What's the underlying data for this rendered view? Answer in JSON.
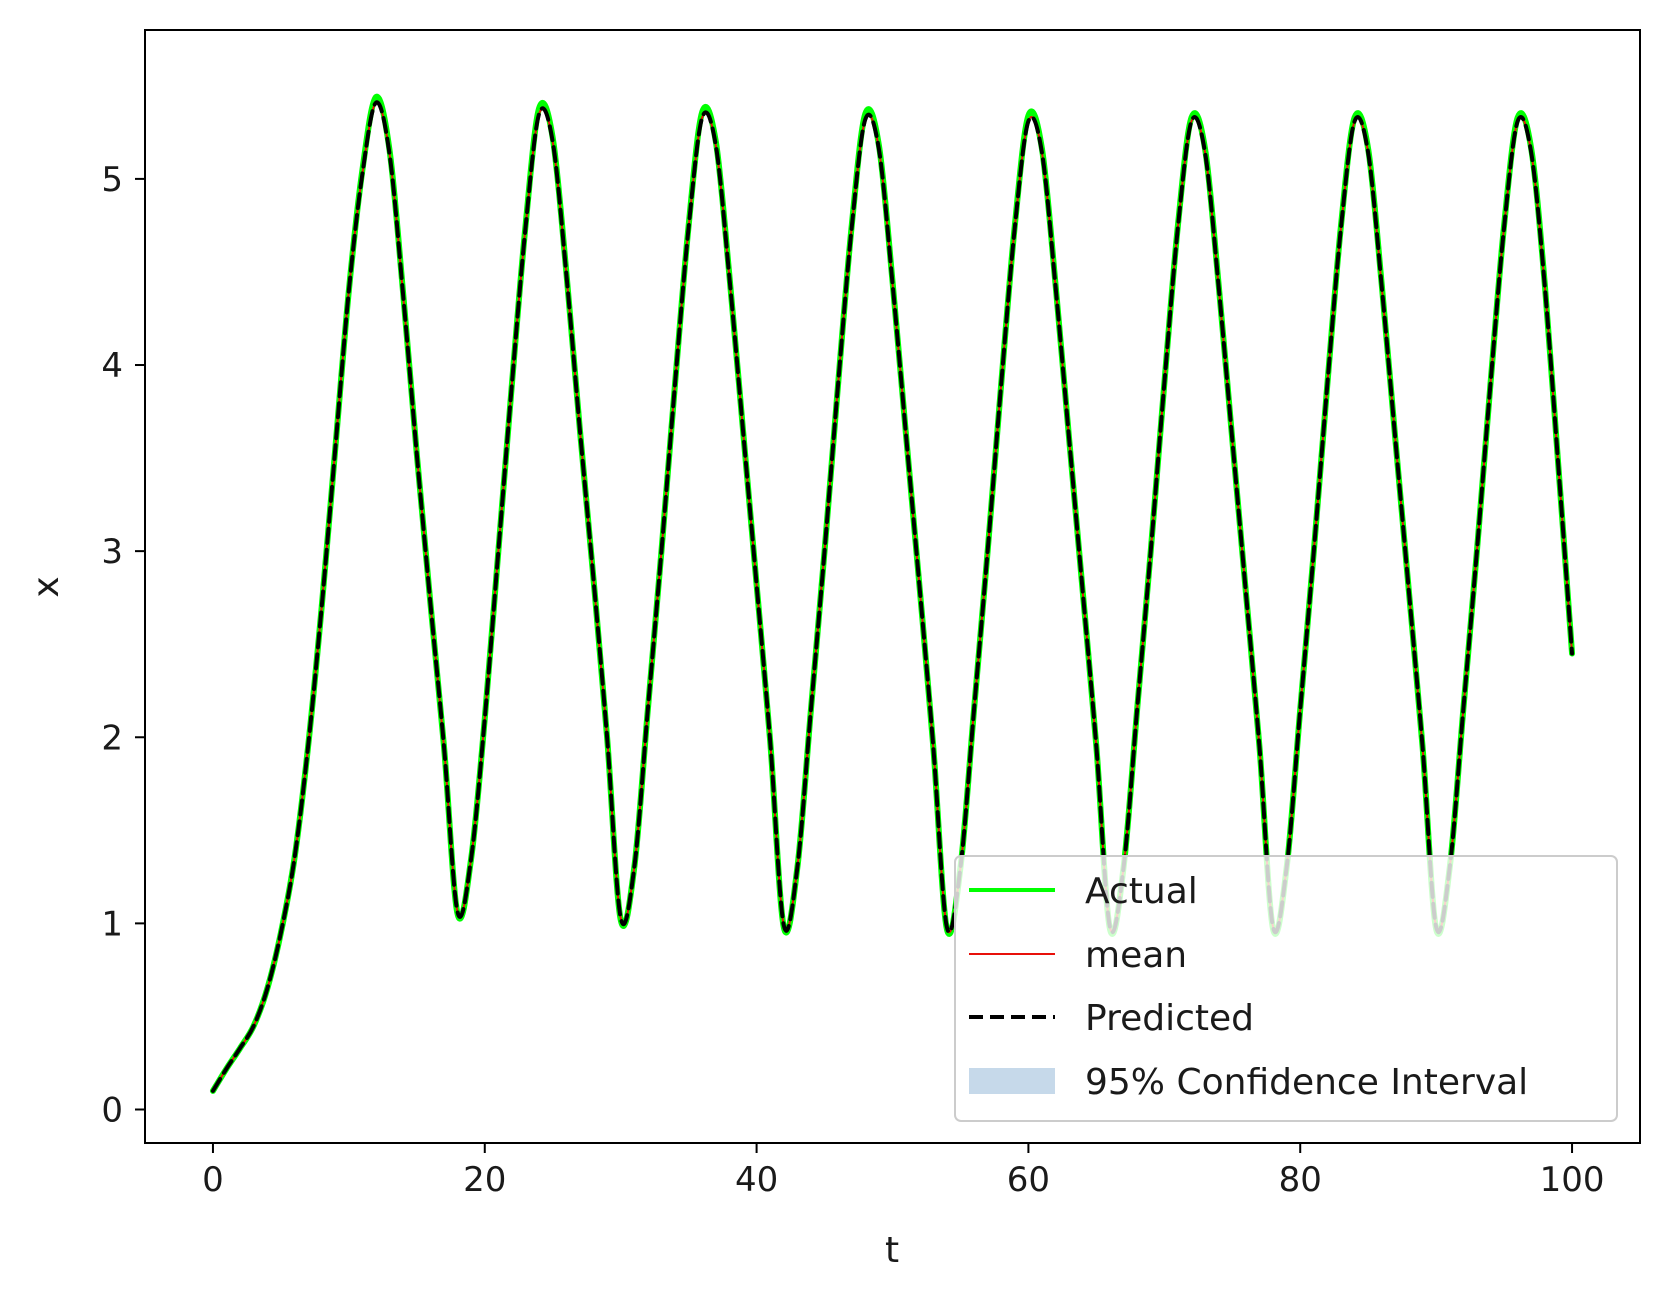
{
  "chart_data": {
    "type": "line",
    "title": "",
    "xlabel": "t",
    "ylabel": "x",
    "xlim": [
      -5,
      105
    ],
    "ylim": [
      -0.18,
      5.8
    ],
    "xticks": [
      0,
      20,
      40,
      60,
      80,
      100
    ],
    "yticks": [
      0,
      1,
      2,
      3,
      4,
      5
    ],
    "grid": false,
    "legend_position": "lower-right",
    "x": [
      0,
      1,
      2,
      3,
      4,
      5,
      6,
      7,
      8,
      9,
      10,
      11,
      12,
      13,
      14,
      15,
      16,
      17,
      18,
      19,
      20,
      21,
      22,
      23,
      24,
      25,
      26,
      27,
      28,
      29,
      30,
      31,
      32,
      33,
      34,
      35,
      36,
      37,
      38,
      39,
      40,
      41,
      42,
      43,
      44,
      45,
      46,
      47,
      48,
      49,
      50,
      51,
      52,
      53,
      54,
      55,
      56,
      57,
      58,
      59,
      60,
      61,
      62,
      63,
      64,
      65,
      66,
      67,
      68,
      69,
      70,
      71,
      72,
      73,
      74,
      75,
      76,
      77,
      78,
      79,
      80,
      81,
      82,
      83,
      84,
      85,
      86,
      87,
      88,
      89,
      90,
      91,
      92,
      93,
      94,
      95,
      96,
      97,
      98,
      99,
      100
    ],
    "series": [
      {
        "name": "Actual",
        "color": "#00ff00",
        "style": "solid",
        "values": [
          0.1,
          0.22,
          0.33,
          0.45,
          0.65,
          0.95,
          1.35,
          1.95,
          2.7,
          3.55,
          4.4,
          5.05,
          5.44,
          5.15,
          4.38,
          3.52,
          2.72,
          1.95,
          1.05,
          1.35,
          2.1,
          3.0,
          3.9,
          4.75,
          5.38,
          5.22,
          4.5,
          3.65,
          2.85,
          2.0,
          1.02,
          1.3,
          2.15,
          3.0,
          3.9,
          4.75,
          5.36,
          5.2,
          4.48,
          3.65,
          2.82,
          1.98,
          0.98,
          1.3,
          2.15,
          3.0,
          3.9,
          4.75,
          5.35,
          5.18,
          4.45,
          3.62,
          2.8,
          1.95,
          0.97,
          1.3,
          2.15,
          3.0,
          3.9,
          4.75,
          5.34,
          5.16,
          4.43,
          3.6,
          2.78,
          1.95,
          0.97,
          1.3,
          2.15,
          3.0,
          3.9,
          4.75,
          5.33,
          5.16,
          4.43,
          3.6,
          2.78,
          1.95,
          0.97,
          1.3,
          2.15,
          3.0,
          3.9,
          4.75,
          5.33,
          5.16,
          4.43,
          3.6,
          2.78,
          1.95,
          0.97,
          1.3,
          2.15,
          3.0,
          3.9,
          4.75,
          5.33,
          5.16,
          4.43,
          3.45,
          2.45
        ]
      },
      {
        "name": "mean",
        "color": "#e8100a",
        "style": "solid-thin",
        "values": [
          0.1,
          0.22,
          0.33,
          0.45,
          0.65,
          0.95,
          1.35,
          1.95,
          2.7,
          3.55,
          4.4,
          5.03,
          5.41,
          5.13,
          4.37,
          3.52,
          2.72,
          1.95,
          1.06,
          1.35,
          2.1,
          3.0,
          3.9,
          4.74,
          5.35,
          5.2,
          4.49,
          3.65,
          2.85,
          2.0,
          1.03,
          1.3,
          2.15,
          3.0,
          3.9,
          4.74,
          5.33,
          5.18,
          4.47,
          3.65,
          2.82,
          1.98,
          0.99,
          1.3,
          2.15,
          3.0,
          3.9,
          4.74,
          5.32,
          5.16,
          4.44,
          3.62,
          2.8,
          1.95,
          0.98,
          1.3,
          2.15,
          3.0,
          3.9,
          4.74,
          5.31,
          5.14,
          4.42,
          3.6,
          2.78,
          1.95,
          0.98,
          1.3,
          2.15,
          3.0,
          3.9,
          4.74,
          5.31,
          5.14,
          4.42,
          3.6,
          2.78,
          1.95,
          0.98,
          1.3,
          2.15,
          3.0,
          3.9,
          4.74,
          5.31,
          5.14,
          4.42,
          3.6,
          2.78,
          1.95,
          0.98,
          1.3,
          2.15,
          3.0,
          3.9,
          4.74,
          5.31,
          5.14,
          4.42,
          3.45,
          2.45
        ]
      },
      {
        "name": "Predicted",
        "color": "#000000",
        "style": "dashed",
        "values": [
          0.1,
          0.22,
          0.33,
          0.45,
          0.65,
          0.95,
          1.35,
          1.95,
          2.7,
          3.55,
          4.4,
          5.03,
          5.41,
          5.13,
          4.37,
          3.52,
          2.72,
          1.95,
          1.06,
          1.35,
          2.1,
          3.0,
          3.9,
          4.74,
          5.35,
          5.2,
          4.49,
          3.65,
          2.85,
          2.0,
          1.03,
          1.3,
          2.15,
          3.0,
          3.9,
          4.74,
          5.33,
          5.18,
          4.47,
          3.65,
          2.82,
          1.98,
          0.99,
          1.3,
          2.15,
          3.0,
          3.9,
          4.74,
          5.32,
          5.16,
          4.44,
          3.62,
          2.8,
          1.95,
          0.98,
          1.3,
          2.15,
          3.0,
          3.9,
          4.74,
          5.31,
          5.14,
          4.42,
          3.6,
          2.78,
          1.95,
          0.98,
          1.3,
          2.15,
          3.0,
          3.9,
          4.74,
          5.31,
          5.14,
          4.42,
          3.6,
          2.78,
          1.95,
          0.98,
          1.3,
          2.15,
          3.0,
          3.9,
          4.74,
          5.31,
          5.14,
          4.42,
          3.6,
          2.78,
          1.95,
          0.98,
          1.3,
          2.15,
          3.0,
          3.9,
          4.74,
          5.31,
          5.14,
          4.42,
          3.45,
          2.45
        ]
      }
    ],
    "legend": [
      {
        "label": "Actual",
        "color": "#00ff00",
        "kind": "line-solid"
      },
      {
        "label": "mean",
        "color": "#e8100a",
        "kind": "line-thin"
      },
      {
        "label": "Predicted",
        "color": "#000000",
        "kind": "line-dashed"
      },
      {
        "label": "95% Confidence Interval",
        "color": "#c6d9ea",
        "kind": "patch"
      }
    ]
  }
}
